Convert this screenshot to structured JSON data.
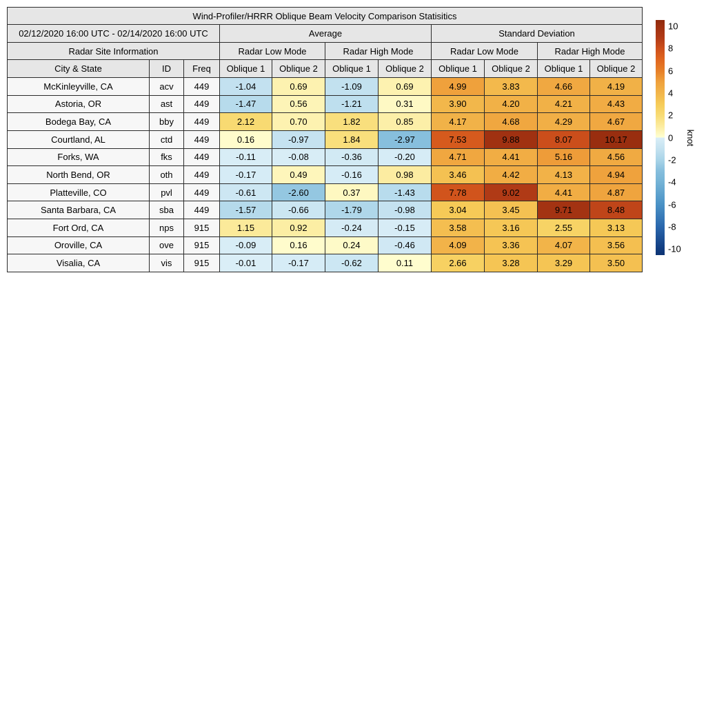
{
  "chart_data": {
    "type": "heatmap-table",
    "title": "Wind-Profiler/HRRR Oblique Beam Velocity Comparison Statisitics",
    "date_range": "02/12/2020 16:00 UTC - 02/14/2020 16:00 UTC",
    "group_headers": [
      "Average",
      "Standard Deviation"
    ],
    "site_info_header": "Radar Site Information",
    "mode_headers": [
      "Radar Low Mode",
      "Radar High Mode",
      "Radar Low Mode",
      "Radar High Mode"
    ],
    "column_headers": [
      "City & State",
      "ID",
      "Freq",
      "Oblique 1",
      "Oblique 2",
      "Oblique 1",
      "Oblique 2",
      "Oblique 1",
      "Oblique 2",
      "Oblique 1",
      "Oblique 2"
    ],
    "rows": [
      {
        "city": "McKinleyville, CA",
        "id": "acv",
        "freq": "449",
        "values": [
          -1.04,
          0.69,
          -1.09,
          0.69,
          4.99,
          3.83,
          4.66,
          4.19
        ]
      },
      {
        "city": "Astoria, OR",
        "id": "ast",
        "freq": "449",
        "values": [
          -1.47,
          0.56,
          -1.21,
          0.31,
          3.9,
          4.2,
          4.21,
          4.43
        ]
      },
      {
        "city": "Bodega Bay, CA",
        "id": "bby",
        "freq": "449",
        "values": [
          2.12,
          0.7,
          1.82,
          0.85,
          4.17,
          4.68,
          4.29,
          4.67
        ]
      },
      {
        "city": "Courtland, AL",
        "id": "ctd",
        "freq": "449",
        "values": [
          0.16,
          -0.97,
          1.84,
          -2.97,
          7.53,
          9.88,
          8.07,
          10.17
        ]
      },
      {
        "city": "Forks, WA",
        "id": "fks",
        "freq": "449",
        "values": [
          -0.11,
          -0.08,
          -0.36,
          -0.2,
          4.71,
          4.41,
          5.16,
          4.56
        ]
      },
      {
        "city": "North Bend, OR",
        "id": "oth",
        "freq": "449",
        "values": [
          -0.17,
          0.49,
          -0.16,
          0.98,
          3.46,
          4.42,
          4.13,
          4.94
        ]
      },
      {
        "city": "Platteville, CO",
        "id": "pvl",
        "freq": "449",
        "values": [
          -0.61,
          -2.6,
          0.37,
          -1.43,
          7.78,
          9.02,
          4.41,
          4.87
        ]
      },
      {
        "city": "Santa Barbara, CA",
        "id": "sba",
        "freq": "449",
        "values": [
          -1.57,
          -0.66,
          -1.79,
          -0.98,
          3.04,
          3.45,
          9.71,
          8.48
        ]
      },
      {
        "city": "Fort Ord, CA",
        "id": "nps",
        "freq": "915",
        "values": [
          1.15,
          0.92,
          -0.24,
          -0.15,
          3.58,
          3.16,
          2.55,
          3.13
        ]
      },
      {
        "city": "Oroville, CA",
        "id": "ove",
        "freq": "915",
        "values": [
          -0.09,
          0.16,
          0.24,
          -0.46,
          4.09,
          3.36,
          4.07,
          3.56
        ]
      },
      {
        "city": "Visalia, CA",
        "id": "vis",
        "freq": "915",
        "values": [
          -0.01,
          -0.17,
          -0.62,
          0.11,
          2.66,
          3.28,
          3.29,
          3.5
        ]
      }
    ],
    "colorbar": {
      "label": "knot",
      "ticks": [
        10,
        8,
        6,
        4,
        2,
        0,
        -2,
        -4,
        -6,
        -8,
        -10
      ],
      "vmin": -10.55,
      "vmax": 10.55,
      "colormap_anchors": [
        [
          -10.55,
          "#0e3472"
        ],
        [
          -10,
          "#113c80"
        ],
        [
          -8,
          "#2a67ad"
        ],
        [
          -6,
          "#4a92c6"
        ],
        [
          -4,
          "#74b3d6"
        ],
        [
          -3,
          "#86bedd"
        ],
        [
          -2,
          "#a9d4e8"
        ],
        [
          -1,
          "#c4e2f0"
        ],
        [
          -0.0001,
          "#daeef7"
        ],
        [
          0,
          "#ffffd4"
        ],
        [
          1,
          "#fceca0"
        ],
        [
          2,
          "#f8dc75"
        ],
        [
          3,
          "#f6cb58"
        ],
        [
          4,
          "#f2b54a"
        ],
        [
          5,
          "#efa13c"
        ],
        [
          6,
          "#e67f28"
        ],
        [
          7,
          "#e0661f"
        ],
        [
          8,
          "#cd4f1b"
        ],
        [
          9,
          "#b03a16"
        ],
        [
          10,
          "#9e3010"
        ],
        [
          10.55,
          "#8f2a0e"
        ]
      ]
    }
  },
  "colors": {
    "header_bg": "#e6e6e6",
    "row_label_bg": "#f7f7f7",
    "border": "#2b2b2b",
    "background": "#ffffff"
  }
}
